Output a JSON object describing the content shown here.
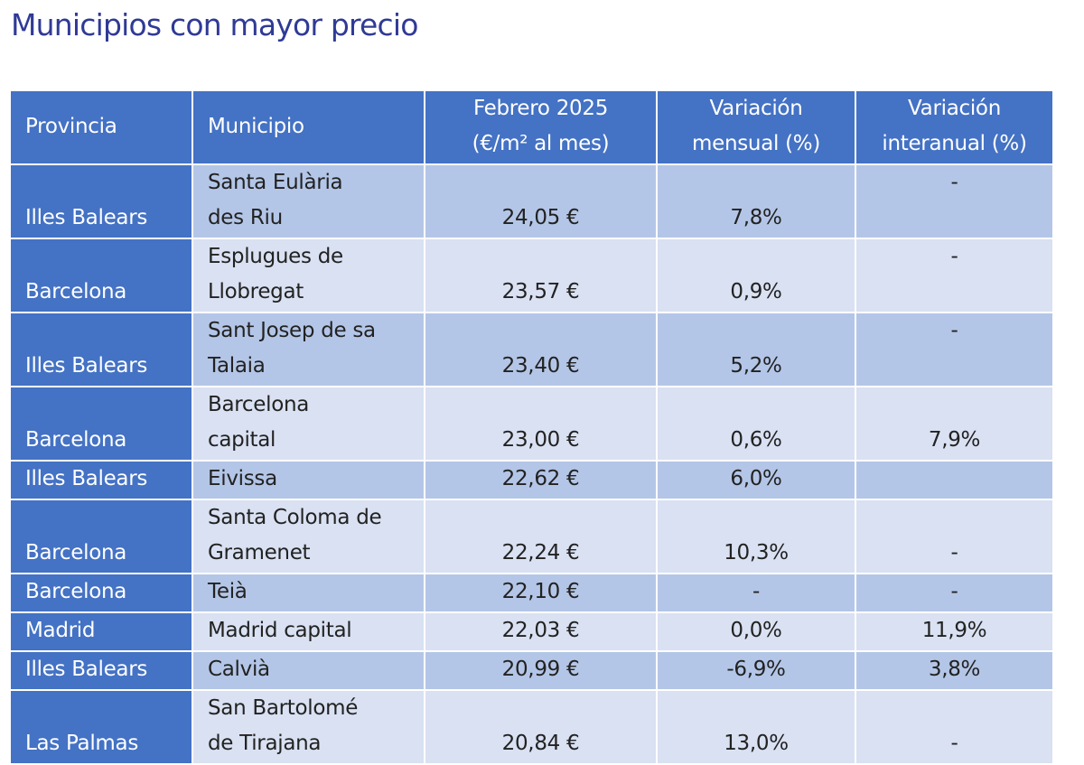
{
  "title": "Municipios con mayor precio",
  "colors": {
    "header": "#4472c4",
    "row_dark": "#b4c6e7",
    "row_light": "#d9e1f2",
    "negative": "#b0122a",
    "title": "#2f3a96"
  },
  "table": {
    "headers": [
      "Provincia",
      "Municipio",
      "Febrero 2025",
      "(€/m² al mes)",
      "Variación",
      "mensual (%)",
      "Variación",
      "interanual (%)"
    ],
    "rows": [
      {
        "provincia": "Illes Balears",
        "municipio": [
          "Santa Eulària",
          "des Riu"
        ],
        "precio": "24,05 €",
        "mensual": "7,8%",
        "interanual": "-"
      },
      {
        "provincia": "Barcelona",
        "municipio": [
          "Esplugues de",
          "Llobregat"
        ],
        "precio": "23,57 €",
        "mensual": "0,9%",
        "interanual": "-"
      },
      {
        "provincia": "Illes Balears",
        "municipio": [
          "Sant Josep de sa",
          "Talaia"
        ],
        "precio": "23,40 €",
        "mensual": "5,2%",
        "interanual": "-"
      },
      {
        "provincia": "Barcelona",
        "municipio": [
          "Barcelona",
          "capital"
        ],
        "precio": "23,00 €",
        "mensual": "0,6%",
        "interanual": "7,9%"
      },
      {
        "provincia": "Illes Balears",
        "municipio": [
          "Eivissa"
        ],
        "precio": "22,62 €",
        "mensual": "6,0%",
        "interanual": ""
      },
      {
        "provincia": "Barcelona",
        "municipio": [
          "Santa Coloma de",
          "Gramenet"
        ],
        "precio": "22,24 €",
        "mensual": "10,3%",
        "interanual": "-"
      },
      {
        "provincia": "Barcelona",
        "municipio": [
          "Teià"
        ],
        "precio": "22,10 €",
        "mensual": "-",
        "interanual": "-"
      },
      {
        "provincia": "Madrid",
        "municipio": [
          "Madrid capital"
        ],
        "precio": "22,03 €",
        "mensual": "0,0%",
        "interanual": "11,9%",
        "mensual_highlight": "negative"
      },
      {
        "provincia": "Illes Balears",
        "municipio": [
          "Calvià"
        ],
        "precio": "20,99 €",
        "mensual": "-6,9%",
        "interanual": "3,8%",
        "mensual_highlight": "negative"
      },
      {
        "provincia": "Las Palmas",
        "municipio": [
          "San Bartolomé",
          "de Tirajana"
        ],
        "precio": "20,84 €",
        "mensual": "13,0%",
        "interanual": "-"
      }
    ]
  }
}
